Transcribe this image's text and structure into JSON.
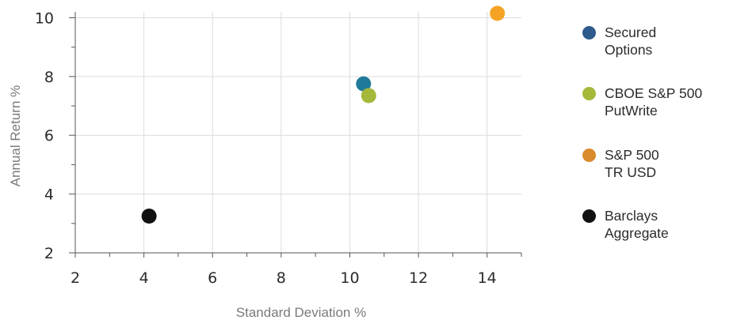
{
  "chart_data": {
    "type": "scatter",
    "xlabel": "Standard Deviation %",
    "ylabel": "Annual Return %",
    "xlim": [
      2,
      15
    ],
    "ylim": [
      2,
      10.2
    ],
    "xticks": [
      2,
      4,
      6,
      8,
      10,
      12,
      14
    ],
    "yticks": [
      2,
      4,
      6,
      8,
      10
    ],
    "grid": true,
    "legend_position": "right",
    "series": [
      {
        "name": "Secured\nOptions",
        "color": "#1f7a99",
        "legend_color": "#2e5a8c",
        "points": [
          {
            "x": 10.4,
            "y": 7.75
          }
        ]
      },
      {
        "name": "CBOE S&P 500\nPutWrite",
        "color": "#a5b83a",
        "points": [
          {
            "x": 10.55,
            "y": 7.35
          }
        ]
      },
      {
        "name": "S&P 500\nTR USD",
        "color": "#f5a324",
        "legend_color": "#d98b2b",
        "points": [
          {
            "x": 14.3,
            "y": 10.15
          }
        ]
      },
      {
        "name": "Barclays\nAggregate",
        "color": "#111111",
        "points": [
          {
            "x": 4.15,
            "y": 3.25
          }
        ]
      }
    ]
  }
}
